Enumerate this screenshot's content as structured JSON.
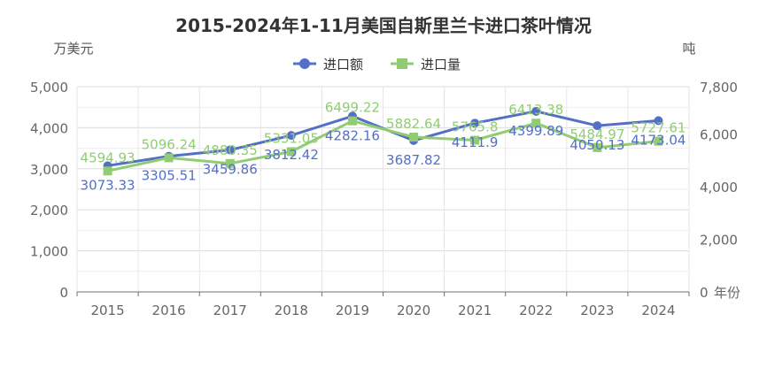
{
  "chart_data": {
    "type": "line",
    "title": "2015-2024年1-11月美国自斯里兰卡进口茶叶情况",
    "categories": [
      "2015",
      "2016",
      "2017",
      "2018",
      "2019",
      "2020",
      "2021",
      "2022",
      "2023",
      "2024"
    ],
    "x_unit": "年份",
    "y_left": {
      "unit": "万美元",
      "ticks": [
        "0",
        "1,000",
        "2,000",
        "3,000",
        "4,000",
        "5,000"
      ],
      "ylim": [
        0,
        5000
      ]
    },
    "y_right": {
      "unit": "吨",
      "ticks": [
        "0",
        "2,000",
        "4,000",
        "6,000",
        "7,800"
      ],
      "ylim": [
        0,
        7800
      ]
    },
    "grid": true,
    "legend_position": "top-center",
    "series": [
      {
        "name": "进口额",
        "axis": "left",
        "color": "#5470c6",
        "marker": "circle",
        "values": [
          3073.33,
          3305.51,
          3459.86,
          3812.42,
          4282.16,
          3687.82,
          4111.9,
          4399.89,
          4050.13,
          4173.04
        ],
        "labels": [
          "3073.33",
          "3305.51",
          "3459.86",
          "3812.42",
          "4282.16",
          "3687.82",
          "4111.9",
          "4399.89",
          "4050.13",
          "4173.04"
        ]
      },
      {
        "name": "进口量",
        "axis": "right",
        "color": "#91cc75",
        "marker": "square",
        "values": [
          4594.93,
          5096.24,
          4880.35,
          5331.05,
          6499.22,
          5882.64,
          5765.8,
          6413.38,
          5484.97,
          5727.61
        ],
        "labels": [
          "4594.93",
          "5096.24",
          "4880.35",
          "5331.05",
          "6499.22",
          "5882.64",
          "5765.8",
          "6413.38",
          "5484.97",
          "5727.61"
        ]
      }
    ]
  }
}
